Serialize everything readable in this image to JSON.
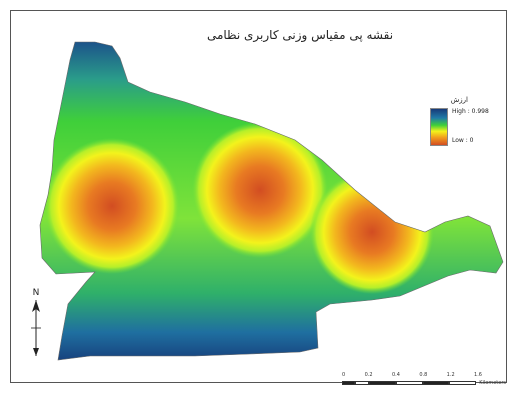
{
  "map": {
    "title": "نقشه پی مقیاس وزنی کاربری نظامی",
    "legend": {
      "title": "ارزش",
      "high_label": "High : 0.998",
      "low_label": "Low : 0",
      "colors": [
        "#163a78",
        "#1f7aa6",
        "#3fcf3a",
        "#f3f31c",
        "#f19a1d",
        "#d24d22"
      ]
    },
    "north_arrow": {
      "label": "N"
    },
    "scale_bar": {
      "tick_labels": [
        "0",
        "0.2",
        "0.4",
        "0.8",
        "1.2",
        "1.6"
      ],
      "units": "Kilometers"
    },
    "hotspots": [
      "west",
      "center",
      "east"
    ]
  }
}
